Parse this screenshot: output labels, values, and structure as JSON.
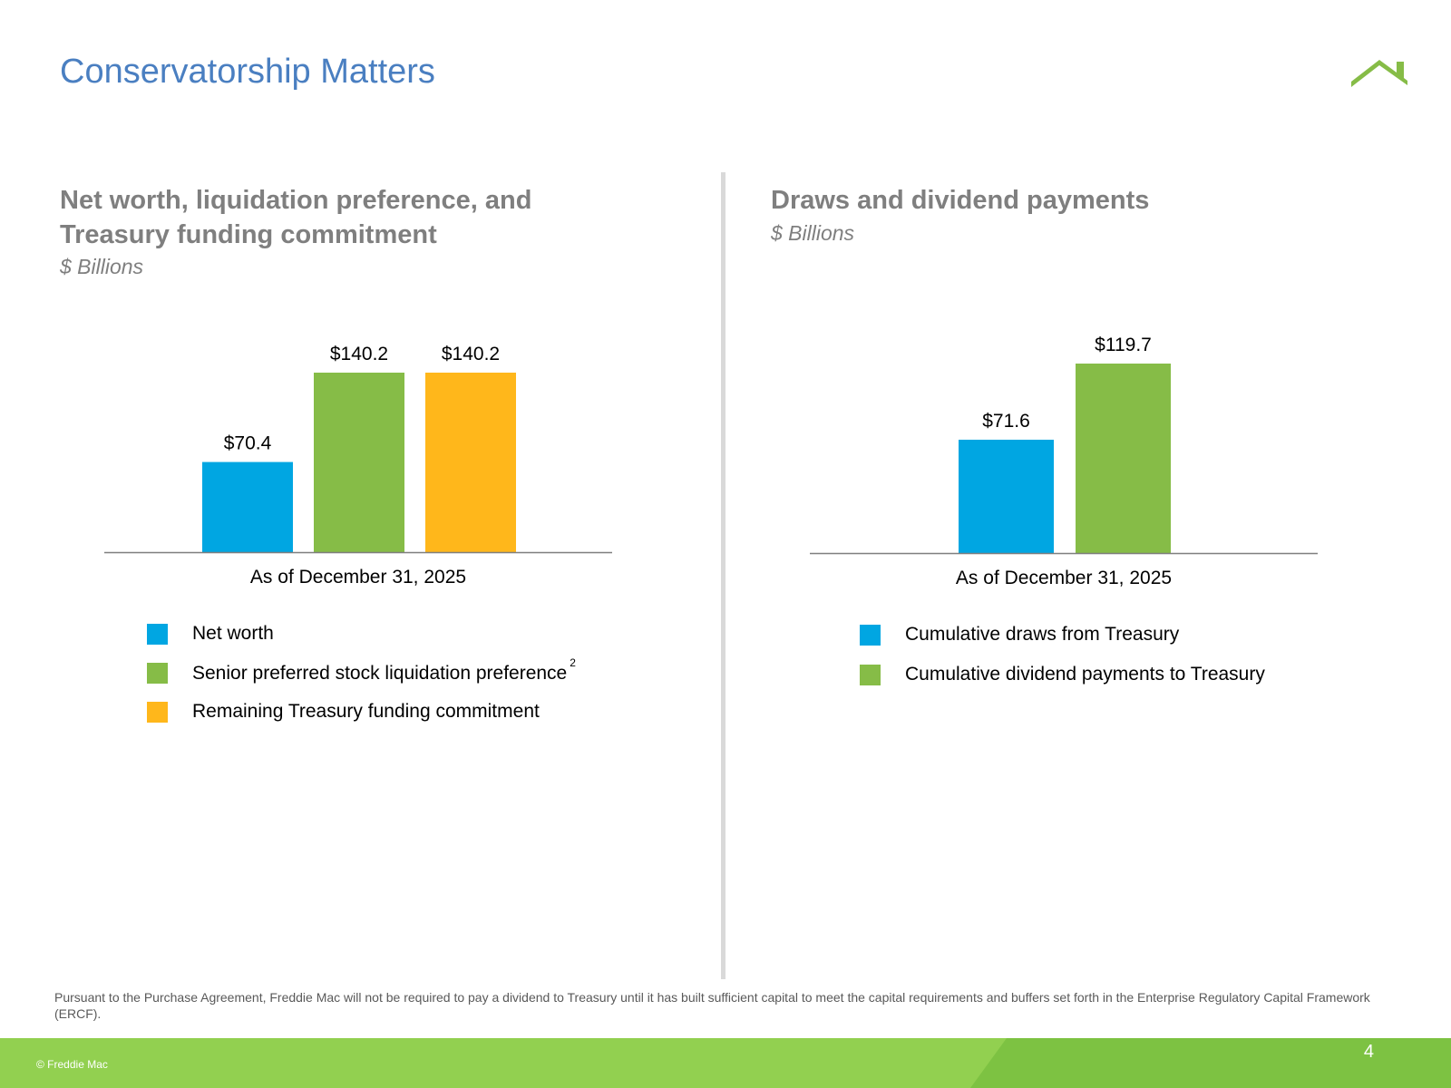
{
  "page": {
    "title": "Conservatorship Matters",
    "footnote": "Pursuant to the Purchase Agreement, Freddie Mac will not be required to pay a dividend to Treasury until it has built sufficient capital to meet the capital requirements and buffers set forth in the Enterprise Regulatory Capital Framework (ERCF).",
    "copyright": "© Freddie Mac",
    "page_number": "4"
  },
  "colors": {
    "title": "#4a7fc1",
    "blue": "#00a6e2",
    "green": "#86bc47",
    "gold": "#ffb71b",
    "footer": "#92d050"
  },
  "left_panel": {
    "title_line1": "Net worth, liquidation preference, and",
    "title_line2": "Treasury funding commitment",
    "subtitle": "$ Billions",
    "legend": [
      {
        "label": "Net worth",
        "sup": ""
      },
      {
        "label": "Senior preferred stock liquidation preference",
        "sup": "2"
      },
      {
        "label": "Remaining Treasury funding commitment",
        "sup": ""
      }
    ]
  },
  "right_panel": {
    "title": "Draws and dividend payments",
    "subtitle": "$ Billions",
    "legend": [
      {
        "label": "Cumulative draws from Treasury"
      },
      {
        "label": "Cumulative dividend payments to Treasury"
      }
    ]
  },
  "chart_data": [
    {
      "type": "bar",
      "title": "Net worth, liquidation preference, and Treasury funding commitment",
      "ylabel": "$ Billions",
      "categories": [
        "As of December 31, 2025"
      ],
      "series": [
        {
          "name": "Net worth",
          "values": [
            70.4
          ],
          "label": "$70.4",
          "color": "#00a6e2"
        },
        {
          "name": "Senior preferred stock liquidation preference",
          "values": [
            140.2
          ],
          "label": "$140.2",
          "color": "#86bc47"
        },
        {
          "name": "Remaining Treasury funding commitment",
          "values": [
            140.2
          ],
          "label": "$140.2",
          "color": "#ffb71b"
        }
      ],
      "ylim": [
        0,
        140.2
      ]
    },
    {
      "type": "bar",
      "title": "Draws and dividend payments",
      "ylabel": "$ Billions",
      "categories": [
        "As of December 31, 2025"
      ],
      "series": [
        {
          "name": "Cumulative draws from Treasury",
          "values": [
            71.6
          ],
          "label": "$71.6",
          "color": "#00a6e2"
        },
        {
          "name": "Cumulative dividend payments to Treasury",
          "values": [
            119.7
          ],
          "label": "$119.7",
          "color": "#86bc47"
        }
      ],
      "ylim": [
        0,
        119.7
      ]
    }
  ]
}
